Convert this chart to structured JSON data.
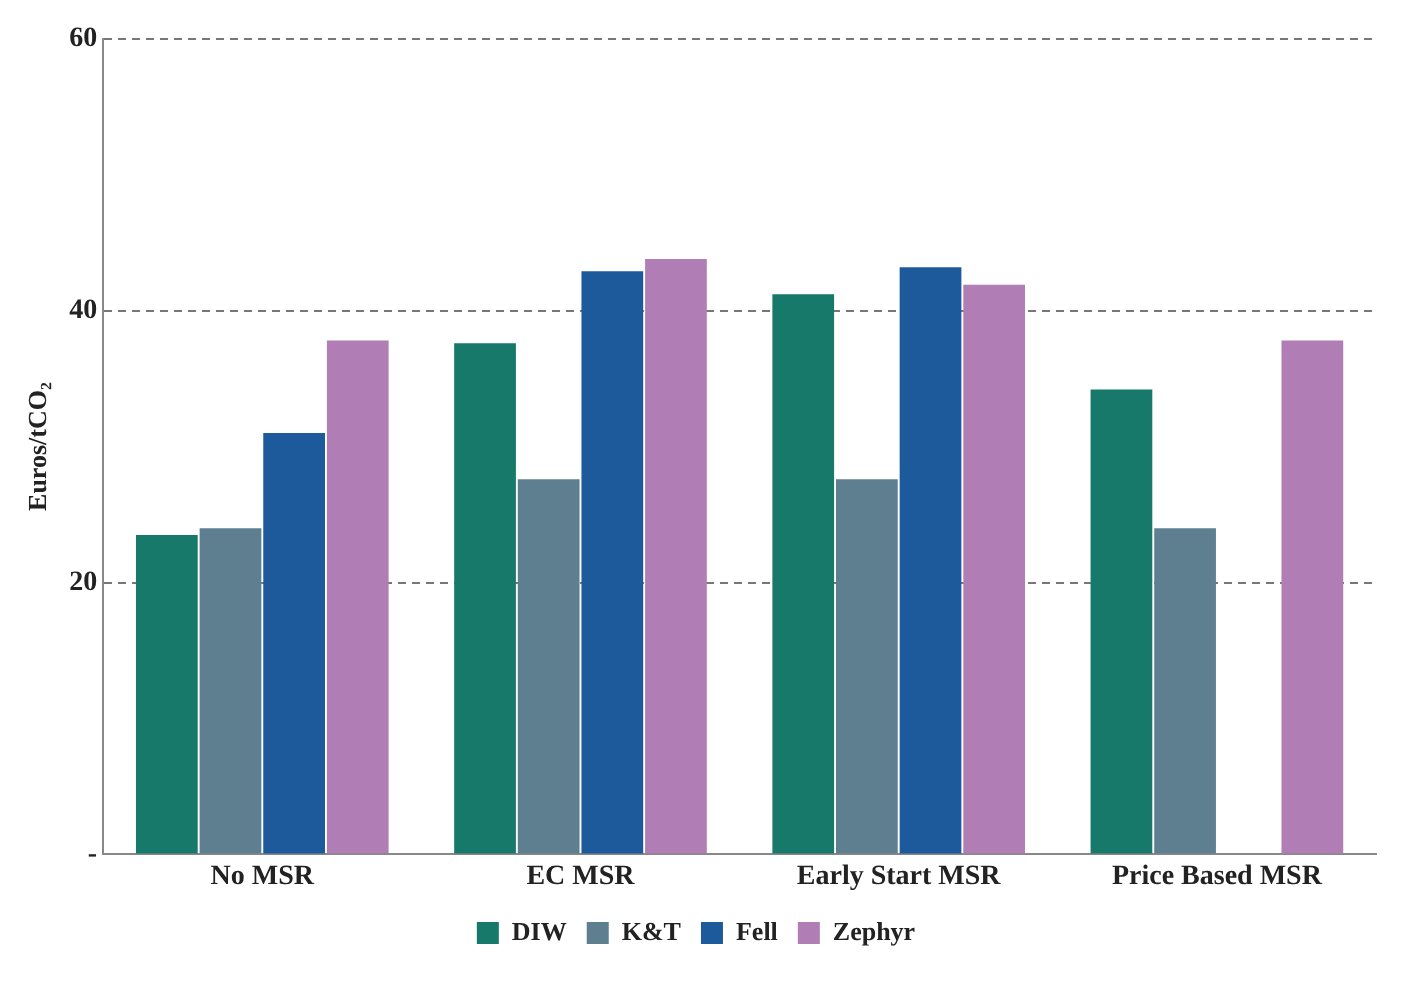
{
  "chart_data": {
    "type": "bar",
    "ylabel": "Euros/tCO₂",
    "categories": [
      "No MSR",
      "EC MSR",
      "Early Start MSR",
      "Price Based MSR"
    ],
    "series": [
      {
        "name": "DIW",
        "color": "#16796a",
        "values": [
          23.5,
          37.6,
          41.2,
          34.2
        ]
      },
      {
        "name": "K&T",
        "color": "#5e7f90",
        "values": [
          24.0,
          27.6,
          27.6,
          24.0
        ]
      },
      {
        "name": "Fell",
        "color": "#1d5a9b",
        "values": [
          31.0,
          42.9,
          43.2,
          null
        ]
      },
      {
        "name": "Zephyr",
        "color": "#b07db5",
        "values": [
          37.8,
          43.8,
          41.9,
          37.8
        ]
      }
    ],
    "ylim": [
      0,
      60
    ],
    "yticks": [
      {
        "value": 0,
        "label": "-"
      },
      20,
      40,
      60
    ],
    "grid": "y",
    "line_style": "dashed",
    "legend": "bottom"
  }
}
